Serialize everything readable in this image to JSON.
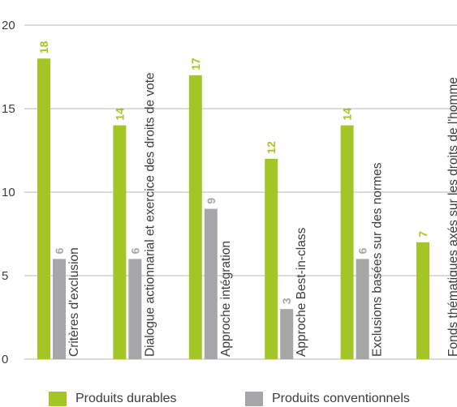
{
  "chart_data": {
    "type": "bar",
    "categories": [
      "Critères d'exclusion",
      "Dialogue actionnarial et exercice des droits de vote",
      "Approche intégration",
      "Approche Best-in-class",
      "Exclusions basées sur des normes",
      "Fonds thématiques axés sur les droits de l'homme"
    ],
    "series": [
      {
        "name": "Produits durables",
        "color": "#a3c626",
        "values": [
          18,
          14,
          17,
          12,
          14,
          7
        ]
      },
      {
        "name": "Produits conventionnels",
        "color": "#a6a6a8",
        "values": [
          6,
          6,
          9,
          3,
          6,
          null
        ]
      }
    ],
    "y_ticks": [
      "0",
      "5",
      "10",
      "15",
      "20"
    ],
    "ylim": [
      0,
      20
    ],
    "grid": true,
    "legend_position": "bottom"
  }
}
